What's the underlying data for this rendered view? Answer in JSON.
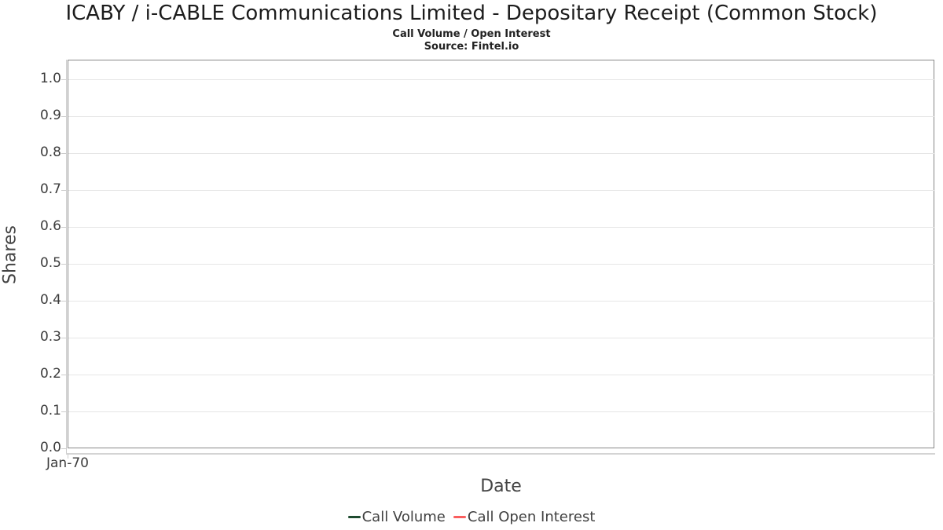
{
  "header": {
    "title": "ICABY / i-CABLE Communications Limited - Depositary Receipt (Common Stock)",
    "subtitle": "Call Volume / Open Interest",
    "source": "Source: Fintel.io"
  },
  "chart_data": {
    "type": "line",
    "title": "ICABY / i-CABLE Communications Limited - Depositary Receipt (Common Stock)",
    "subtitle": "Call Volume / Open Interest",
    "source": "Source: Fintel.io",
    "xlabel": "Date",
    "ylabel": "Shares",
    "x_ticks": [
      "Jan-70"
    ],
    "y_ticks": [
      "0.0",
      "0.1",
      "0.2",
      "0.3",
      "0.4",
      "0.5",
      "0.6",
      "0.7",
      "0.8",
      "0.9",
      "1.0"
    ],
    "ylim": [
      0.0,
      1.05
    ],
    "grid": true,
    "legend_position": "bottom",
    "series": [
      {
        "name": "Call Volume",
        "color": "#1e4b30",
        "values": []
      },
      {
        "name": "Call Open Interest",
        "color": "#fa5e5e",
        "values": []
      }
    ],
    "plot_empty": true
  },
  "colors": {
    "gridline": "#e6e6e6",
    "plot_border": "#888888",
    "axis_line": "#cccccc",
    "call_volume": "#1e4b30",
    "call_open_interest": "#fa5e5e"
  }
}
